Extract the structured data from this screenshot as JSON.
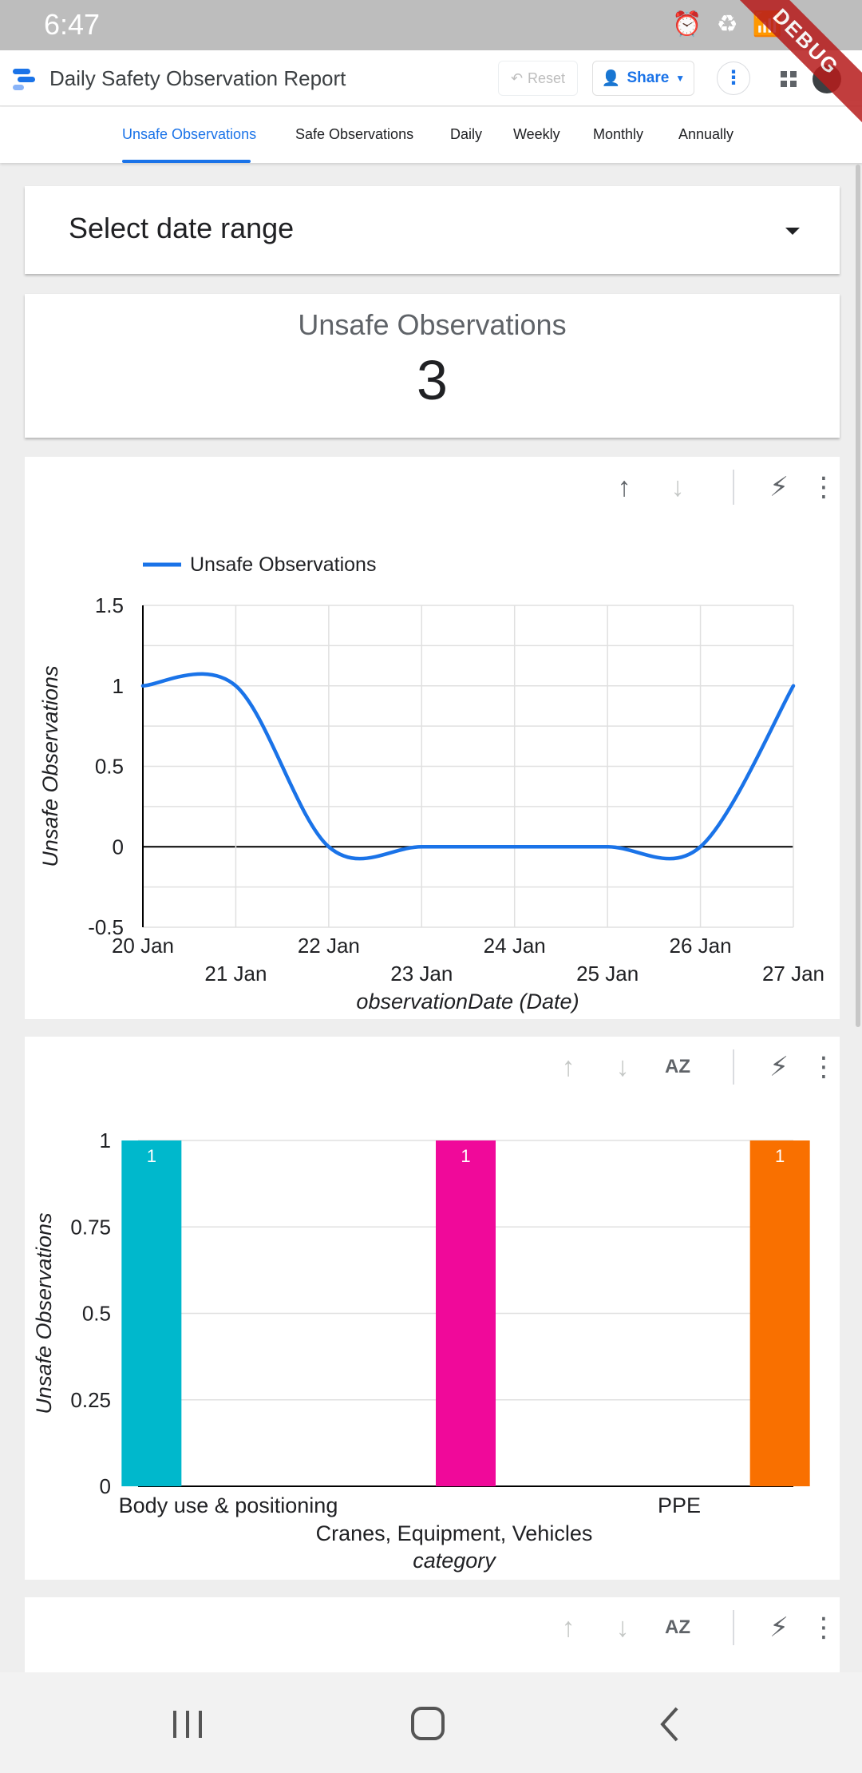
{
  "status_bar": {
    "time": "6:47",
    "debug": "DEBUG"
  },
  "app_bar": {
    "title": "Daily Safety Observation Report",
    "reset_label": "Reset",
    "share_label": "Share"
  },
  "tabs": [
    {
      "label": "Unsafe Observations",
      "active": true
    },
    {
      "label": "Safe Observations",
      "active": false
    },
    {
      "label": "Daily",
      "active": false
    },
    {
      "label": "Weekly",
      "active": false
    },
    {
      "label": "Monthly",
      "active": false
    },
    {
      "label": "Annually",
      "active": false
    }
  ],
  "date_range": {
    "label": "Select date range"
  },
  "scorecard": {
    "label": "Unsafe Observations",
    "value": "3"
  },
  "icons": {
    "sort_up": "arrow-up-icon",
    "sort_down": "arrow-down-icon",
    "sort_az": "sort-az-icon",
    "flash": "flash-off-icon",
    "more": "more-vert-icon"
  },
  "chart_data": [
    {
      "type": "line",
      "legend": "Unsafe Observations",
      "legend_position": "top-left",
      "x": [
        "20 Jan",
        "21 Jan",
        "22 Jan",
        "23 Jan",
        "24 Jan",
        "25 Jan",
        "26 Jan",
        "27 Jan"
      ],
      "series": [
        {
          "name": "Unsafe Observations",
          "values": [
            1,
            1,
            0,
            0,
            0,
            0,
            0,
            1
          ],
          "color": "#1a73e8"
        }
      ],
      "xlabel": "observationDate (Date)",
      "ylabel": "Unsafe Observations",
      "yticks": [
        "-0.5",
        "0",
        "0.5",
        "1",
        "1.5"
      ],
      "ylim": [
        -0.5,
        1.5
      ],
      "grid": true
    },
    {
      "type": "bar",
      "categories": [
        "Body use & positioning",
        "Cranes, Equipment, Vehicles",
        "PPE"
      ],
      "values": [
        1,
        1,
        1
      ],
      "data_labels": [
        "1",
        "1",
        "1"
      ],
      "colors": [
        "#00b8cc",
        "#f0099a",
        "#f97000"
      ],
      "xlabel": "category",
      "ylabel": "Unsafe Observations",
      "yticks": [
        "0",
        "0.25",
        "0.5",
        "0.75",
        "1"
      ],
      "ylim": [
        0,
        1
      ],
      "grid": true
    }
  ]
}
